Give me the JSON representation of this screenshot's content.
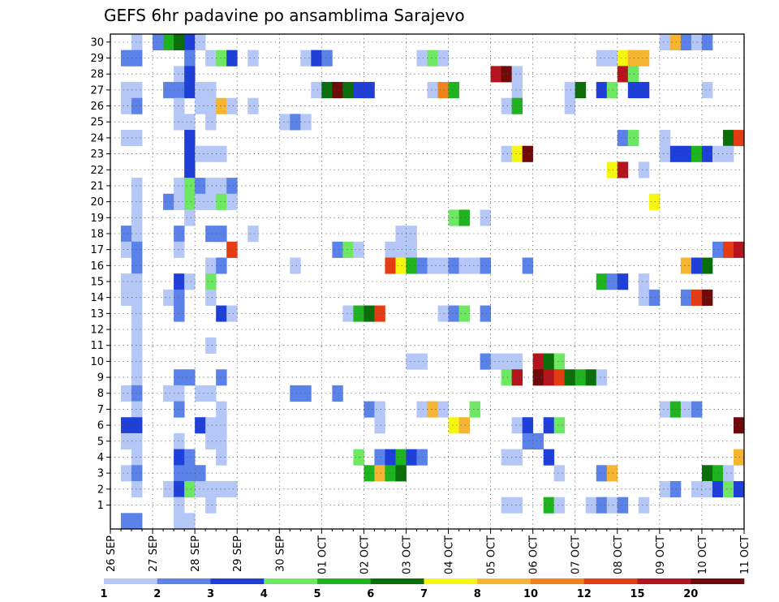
{
  "chart_data": {
    "type": "heatmap",
    "title": "GEFS 6hr padavine po ansamblima Sarajevo",
    "y_range": [
      1,
      30
    ],
    "y_ticks": [
      1,
      2,
      3,
      4,
      5,
      6,
      7,
      8,
      9,
      10,
      11,
      12,
      13,
      14,
      15,
      16,
      17,
      18,
      19,
      20,
      21,
      22,
      23,
      24,
      25,
      26,
      27,
      28,
      29,
      30
    ],
    "x_ticks": [
      "26 SEP",
      "27 SEP",
      "28 SEP",
      "29 SEP",
      "30 SEP",
      "01 OCT",
      "02 OCT",
      "03 OCT",
      "04 OCT",
      "05 OCT",
      "06 OCT",
      "07 OCT",
      "08 OCT",
      "09 OCT",
      "10 OCT",
      "11 OCT"
    ],
    "steps_per_day": 4,
    "grid": "dotted",
    "legend": {
      "placement": "bottom",
      "labels": [
        "1",
        "2",
        "3",
        "4",
        "5",
        "6",
        "7",
        "8",
        "10",
        "12",
        "15",
        "20"
      ],
      "colors": [
        "#b4c7f7",
        "#5a82e8",
        "#1f3fd9",
        "#6ee863",
        "#1fb41f",
        "#0a6e0a",
        "#f5f50f",
        "#f5b432",
        "#f0821e",
        "#e63c14",
        "#b4141e",
        "#6e0a0a"
      ]
    },
    "cells": [
      [
        30,
        2,
        1
      ],
      [
        30,
        4,
        2
      ],
      [
        30,
        5,
        5
      ],
      [
        30,
        6,
        6
      ],
      [
        30,
        7,
        3
      ],
      [
        30,
        8,
        1
      ],
      [
        30,
        52,
        1
      ],
      [
        30,
        53,
        8
      ],
      [
        30,
        54,
        2
      ],
      [
        30,
        55,
        1
      ],
      [
        30,
        56,
        2
      ],
      [
        29,
        1,
        2
      ],
      [
        29,
        2,
        2
      ],
      [
        29,
        7,
        2
      ],
      [
        29,
        9,
        1
      ],
      [
        29,
        10,
        4
      ],
      [
        29,
        11,
        3
      ],
      [
        29,
        13,
        1
      ],
      [
        29,
        18,
        1
      ],
      [
        29,
        19,
        3
      ],
      [
        29,
        20,
        2
      ],
      [
        29,
        29,
        1
      ],
      [
        29,
        30,
        4
      ],
      [
        29,
        31,
        1
      ],
      [
        29,
        46,
        1
      ],
      [
        29,
        47,
        1
      ],
      [
        29,
        48,
        7
      ],
      [
        29,
        49,
        8
      ],
      [
        29,
        50,
        8
      ],
      [
        28,
        6,
        1
      ],
      [
        28,
        7,
        3
      ],
      [
        28,
        36,
        11
      ],
      [
        28,
        37,
        12
      ],
      [
        28,
        38,
        1
      ],
      [
        28,
        48,
        11
      ],
      [
        28,
        49,
        4
      ],
      [
        27,
        1,
        1
      ],
      [
        27,
        2,
        1
      ],
      [
        27,
        5,
        2
      ],
      [
        27,
        6,
        2
      ],
      [
        27,
        7,
        3
      ],
      [
        27,
        8,
        1
      ],
      [
        27,
        9,
        1
      ],
      [
        27,
        19,
        1
      ],
      [
        27,
        20,
        6
      ],
      [
        27,
        21,
        12
      ],
      [
        27,
        22,
        6
      ],
      [
        27,
        23,
        3
      ],
      [
        27,
        24,
        3
      ],
      [
        27,
        30,
        1
      ],
      [
        27,
        31,
        9
      ],
      [
        27,
        32,
        5
      ],
      [
        27,
        38,
        1
      ],
      [
        27,
        43,
        1
      ],
      [
        27,
        44,
        6
      ],
      [
        27,
        46,
        3
      ],
      [
        27,
        47,
        4
      ],
      [
        27,
        49,
        3
      ],
      [
        27,
        50,
        3
      ],
      [
        27,
        56,
        1
      ],
      [
        26,
        1,
        1
      ],
      [
        26,
        2,
        2
      ],
      [
        26,
        6,
        1
      ],
      [
        26,
        8,
        1
      ],
      [
        26,
        9,
        1
      ],
      [
        26,
        10,
        8
      ],
      [
        26,
        11,
        1
      ],
      [
        26,
        13,
        1
      ],
      [
        26,
        37,
        1
      ],
      [
        26,
        38,
        5
      ],
      [
        26,
        43,
        1
      ],
      [
        25,
        6,
        1
      ],
      [
        25,
        7,
        1
      ],
      [
        25,
        9,
        1
      ],
      [
        25,
        16,
        1
      ],
      [
        25,
        17,
        2
      ],
      [
        25,
        18,
        1
      ],
      [
        24,
        1,
        1
      ],
      [
        24,
        2,
        1
      ],
      [
        24,
        7,
        3
      ],
      [
        24,
        48,
        2
      ],
      [
        24,
        49,
        4
      ],
      [
        24,
        52,
        1
      ],
      [
        24,
        58,
        6
      ],
      [
        24,
        59,
        10
      ],
      [
        23,
        7,
        3
      ],
      [
        23,
        8,
        1
      ],
      [
        23,
        9,
        1
      ],
      [
        23,
        10,
        1
      ],
      [
        23,
        37,
        1
      ],
      [
        23,
        38,
        7
      ],
      [
        23,
        39,
        12
      ],
      [
        23,
        52,
        1
      ],
      [
        23,
        53,
        3
      ],
      [
        23,
        54,
        3
      ],
      [
        23,
        55,
        5
      ],
      [
        23,
        56,
        3
      ],
      [
        23,
        57,
        1
      ],
      [
        23,
        58,
        1
      ],
      [
        22,
        7,
        3
      ],
      [
        22,
        47,
        7
      ],
      [
        22,
        48,
        11
      ],
      [
        22,
        50,
        1
      ],
      [
        21,
        2,
        1
      ],
      [
        21,
        6,
        1
      ],
      [
        21,
        7,
        4
      ],
      [
        21,
        8,
        2
      ],
      [
        21,
        9,
        1
      ],
      [
        21,
        10,
        1
      ],
      [
        21,
        11,
        2
      ],
      [
        20,
        2,
        1
      ],
      [
        20,
        5,
        2
      ],
      [
        20,
        6,
        1
      ],
      [
        20,
        7,
        4
      ],
      [
        20,
        8,
        1
      ],
      [
        20,
        9,
        1
      ],
      [
        20,
        10,
        4
      ],
      [
        20,
        11,
        1
      ],
      [
        20,
        51,
        7
      ],
      [
        19,
        2,
        1
      ],
      [
        19,
        7,
        1
      ],
      [
        19,
        32,
        4
      ],
      [
        19,
        33,
        5
      ],
      [
        19,
        35,
        1
      ],
      [
        18,
        1,
        2
      ],
      [
        18,
        2,
        1
      ],
      [
        18,
        6,
        2
      ],
      [
        18,
        9,
        2
      ],
      [
        18,
        10,
        2
      ],
      [
        18,
        13,
        1
      ],
      [
        18,
        27,
        1
      ],
      [
        18,
        28,
        1
      ],
      [
        17,
        1,
        1
      ],
      [
        17,
        2,
        2
      ],
      [
        17,
        6,
        1
      ],
      [
        17,
        11,
        10
      ],
      [
        17,
        21,
        2
      ],
      [
        17,
        22,
        4
      ],
      [
        17,
        23,
        1
      ],
      [
        17,
        26,
        1
      ],
      [
        17,
        27,
        1
      ],
      [
        17,
        28,
        1
      ],
      [
        17,
        57,
        2
      ],
      [
        17,
        58,
        10
      ],
      [
        17,
        59,
        11
      ],
      [
        16,
        2,
        2
      ],
      [
        16,
        9,
        1
      ],
      [
        16,
        10,
        2
      ],
      [
        16,
        17,
        1
      ],
      [
        16,
        26,
        10
      ],
      [
        16,
        27,
        7
      ],
      [
        16,
        28,
        5
      ],
      [
        16,
        29,
        2
      ],
      [
        16,
        30,
        1
      ],
      [
        16,
        31,
        1
      ],
      [
        16,
        32,
        2
      ],
      [
        16,
        33,
        1
      ],
      [
        16,
        34,
        1
      ],
      [
        16,
        35,
        2
      ],
      [
        16,
        39,
        2
      ],
      [
        16,
        54,
        8
      ],
      [
        16,
        55,
        3
      ],
      [
        16,
        56,
        6
      ],
      [
        15,
        1,
        1
      ],
      [
        15,
        2,
        1
      ],
      [
        15,
        6,
        3
      ],
      [
        15,
        7,
        1
      ],
      [
        15,
        9,
        4
      ],
      [
        15,
        46,
        5
      ],
      [
        15,
        47,
        2
      ],
      [
        15,
        48,
        3
      ],
      [
        15,
        50,
        1
      ],
      [
        14,
        1,
        1
      ],
      [
        14,
        2,
        1
      ],
      [
        14,
        5,
        1
      ],
      [
        14,
        6,
        2
      ],
      [
        14,
        9,
        1
      ],
      [
        14,
        50,
        1
      ],
      [
        14,
        51,
        2
      ],
      [
        14,
        54,
        2
      ],
      [
        14,
        55,
        10
      ],
      [
        14,
        56,
        12
      ],
      [
        13,
        2,
        1
      ],
      [
        13,
        6,
        2
      ],
      [
        13,
        10,
        3
      ],
      [
        13,
        11,
        1
      ],
      [
        13,
        22,
        1
      ],
      [
        13,
        23,
        5
      ],
      [
        13,
        24,
        6
      ],
      [
        13,
        25,
        10
      ],
      [
        13,
        31,
        1
      ],
      [
        13,
        32,
        2
      ],
      [
        13,
        33,
        4
      ],
      [
        13,
        35,
        2
      ],
      [
        12,
        2,
        1
      ],
      [
        11,
        2,
        1
      ],
      [
        11,
        9,
        1
      ],
      [
        10,
        2,
        1
      ],
      [
        10,
        28,
        1
      ],
      [
        10,
        29,
        1
      ],
      [
        10,
        35,
        2
      ],
      [
        10,
        36,
        1
      ],
      [
        10,
        37,
        1
      ],
      [
        10,
        38,
        1
      ],
      [
        10,
        40,
        11
      ],
      [
        10,
        41,
        6
      ],
      [
        10,
        42,
        4
      ],
      [
        9,
        2,
        1
      ],
      [
        9,
        6,
        2
      ],
      [
        9,
        7,
        2
      ],
      [
        9,
        10,
        2
      ],
      [
        9,
        37,
        4
      ],
      [
        9,
        38,
        11
      ],
      [
        9,
        40,
        12
      ],
      [
        9,
        41,
        11
      ],
      [
        9,
        42,
        10
      ],
      [
        9,
        43,
        6
      ],
      [
        9,
        44,
        5
      ],
      [
        9,
        45,
        6
      ],
      [
        9,
        46,
        1
      ],
      [
        8,
        1,
        1
      ],
      [
        8,
        2,
        2
      ],
      [
        8,
        5,
        1
      ],
      [
        8,
        6,
        1
      ],
      [
        8,
        8,
        1
      ],
      [
        8,
        9,
        1
      ],
      [
        8,
        17,
        2
      ],
      [
        8,
        18,
        2
      ],
      [
        8,
        21,
        2
      ],
      [
        7,
        2,
        1
      ],
      [
        7,
        6,
        2
      ],
      [
        7,
        10,
        1
      ],
      [
        7,
        24,
        2
      ],
      [
        7,
        25,
        1
      ],
      [
        7,
        29,
        1
      ],
      [
        7,
        30,
        8
      ],
      [
        7,
        31,
        1
      ],
      [
        7,
        34,
        4
      ],
      [
        7,
        52,
        1
      ],
      [
        7,
        53,
        5
      ],
      [
        7,
        54,
        1
      ],
      [
        7,
        55,
        2
      ],
      [
        6,
        1,
        3
      ],
      [
        6,
        2,
        3
      ],
      [
        6,
        8,
        3
      ],
      [
        6,
        9,
        1
      ],
      [
        6,
        10,
        1
      ],
      [
        6,
        25,
        1
      ],
      [
        6,
        32,
        7
      ],
      [
        6,
        33,
        8
      ],
      [
        6,
        38,
        1
      ],
      [
        6,
        39,
        3
      ],
      [
        6,
        41,
        3
      ],
      [
        6,
        42,
        4
      ],
      [
        6,
        59,
        12
      ],
      [
        5,
        1,
        1
      ],
      [
        5,
        2,
        1
      ],
      [
        5,
        6,
        1
      ],
      [
        5,
        9,
        1
      ],
      [
        5,
        10,
        1
      ],
      [
        5,
        39,
        2
      ],
      [
        5,
        40,
        2
      ],
      [
        4,
        2,
        1
      ],
      [
        4,
        6,
        3
      ],
      [
        4,
        7,
        2
      ],
      [
        4,
        10,
        1
      ],
      [
        4,
        23,
        4
      ],
      [
        4,
        25,
        2
      ],
      [
        4,
        26,
        3
      ],
      [
        4,
        27,
        5
      ],
      [
        4,
        28,
        3
      ],
      [
        4,
        29,
        2
      ],
      [
        4,
        37,
        1
      ],
      [
        4,
        38,
        1
      ],
      [
        4,
        41,
        3
      ],
      [
        4,
        59,
        8
      ],
      [
        3,
        1,
        1
      ],
      [
        3,
        2,
        2
      ],
      [
        3,
        6,
        2
      ],
      [
        3,
        7,
        2
      ],
      [
        3,
        8,
        2
      ],
      [
        3,
        24,
        5
      ],
      [
        3,
        25,
        8
      ],
      [
        3,
        26,
        5
      ],
      [
        3,
        27,
        6
      ],
      [
        3,
        42,
        1
      ],
      [
        3,
        46,
        2
      ],
      [
        3,
        47,
        8
      ],
      [
        3,
        56,
        6
      ],
      [
        3,
        57,
        5
      ],
      [
        3,
        58,
        1
      ],
      [
        2,
        2,
        1
      ],
      [
        2,
        5,
        1
      ],
      [
        2,
        6,
        3
      ],
      [
        2,
        7,
        4
      ],
      [
        2,
        8,
        1
      ],
      [
        2,
        9,
        1
      ],
      [
        2,
        10,
        1
      ],
      [
        2,
        11,
        1
      ],
      [
        2,
        52,
        1
      ],
      [
        2,
        53,
        2
      ],
      [
        2,
        55,
        1
      ],
      [
        2,
        56,
        1
      ],
      [
        2,
        57,
        3
      ],
      [
        2,
        58,
        4
      ],
      [
        2,
        59,
        3
      ],
      [
        1,
        6,
        1
      ],
      [
        1,
        9,
        1
      ],
      [
        1,
        37,
        1
      ],
      [
        1,
        38,
        1
      ],
      [
        1,
        41,
        5
      ],
      [
        1,
        42,
        1
      ],
      [
        1,
        45,
        1
      ],
      [
        1,
        46,
        2
      ],
      [
        1,
        47,
        1
      ],
      [
        1,
        48,
        2
      ],
      [
        1,
        50,
        1
      ],
      [
        0,
        1,
        2
      ],
      [
        0,
        2,
        2
      ],
      [
        0,
        6,
        1
      ],
      [
        0,
        7,
        1
      ]
    ]
  }
}
